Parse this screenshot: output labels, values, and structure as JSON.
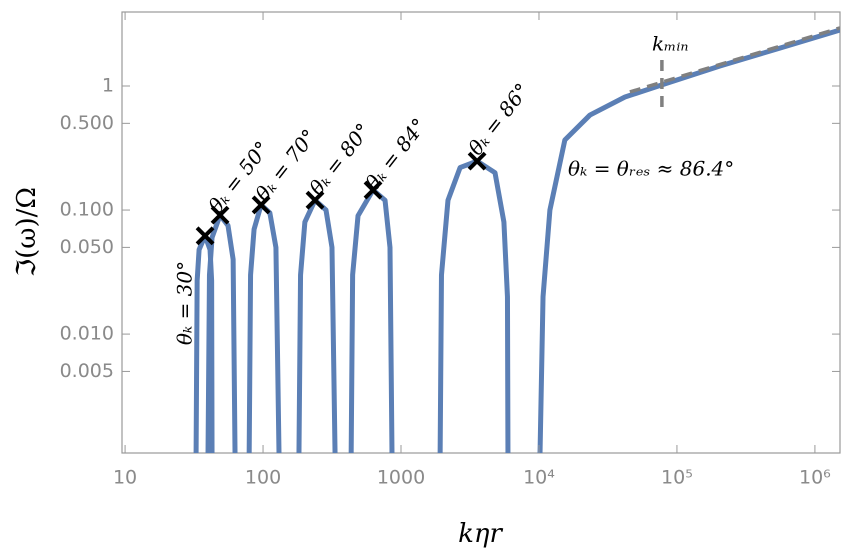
{
  "chart_data": {
    "type": "line",
    "xlabel": "kηr",
    "ylabel": "ℑ(ω)/Ω",
    "xscale": "log",
    "yscale": "log",
    "xlim": [
      9.5,
      1520000
    ],
    "ylim": [
      0.0011,
      3.95
    ],
    "xticks": [
      10,
      100,
      1000,
      {
        "value": 10000,
        "label": "10⁴"
      },
      {
        "value": 100000,
        "label": "10⁵"
      },
      {
        "value": 1000000,
        "label": "10⁶"
      }
    ],
    "yticks": [
      0.005,
      {
        "value": 0.01,
        "label": "0.010"
      },
      {
        "value": 0.05,
        "label": "0.050"
      },
      {
        "value": 0.1,
        "label": "0.100"
      },
      {
        "value": 0.5,
        "label": "0.500"
      },
      1
    ],
    "color": "#5b7fb5",
    "series": [
      {
        "x": [
          32.7,
          33.3,
          34.4,
          38.0,
          41.3,
          42.4,
          42.7
        ],
        "values": [
          0.001,
          0.027,
          0.048,
          0.062,
          0.048,
          0.027,
          0.001
        ]
      },
      {
        "x": [
          39.9,
          40.9,
          42.7,
          48.8,
          55.7,
          60.7,
          62.7
        ],
        "values": [
          0.001,
          0.03,
          0.06,
          0.091,
          0.075,
          0.04,
          0.001
        ]
      },
      {
        "x": [
          79.3,
          81.2,
          86.1,
          96.8,
          112,
          124,
          130.7
        ],
        "values": [
          0.001,
          0.03,
          0.07,
          0.11,
          0.095,
          0.05,
          0.001
        ]
      },
      {
        "x": [
          182,
          187,
          201,
          238,
          286,
          316,
          333
        ],
        "values": [
          0.001,
          0.03,
          0.08,
          0.12,
          0.1,
          0.05,
          0.001
        ]
      },
      {
        "x": [
          435,
          446,
          488,
          627,
          766,
          832,
          861
        ],
        "values": [
          0.001,
          0.03,
          0.09,
          0.145,
          0.12,
          0.05,
          0.001
        ]
      },
      {
        "x": [
          1920,
          1965,
          2190,
          2680,
          3560,
          4800,
          5570,
          5910,
          5960
        ],
        "values": [
          0.001,
          0.03,
          0.12,
          0.22,
          0.248,
          0.2,
          0.08,
          0.02,
          0.001
        ]
      },
      {
        "x": [
          10160,
          10700,
          12000,
          15400,
          23400,
          42000,
          81800,
          205000,
          557000,
          1520000
        ],
        "values": [
          0.001,
          0.02,
          0.1,
          0.367,
          0.583,
          0.815,
          1.04,
          1.45,
          2.02,
          2.83
        ]
      }
    ],
    "markers": {
      "x": [
        38.0,
        48.8,
        96.8,
        238,
        627,
        3560
      ],
      "values": [
        0.062,
        0.091,
        0.11,
        0.12,
        0.145,
        0.248
      ],
      "color": "#000000"
    },
    "reference_lines": [
      {
        "x": [
          45600,
          1520000
        ],
        "values": [
          0.895,
          2.94
        ],
        "color": "#808080"
      },
      {
        "x": [
          77800,
          77800
        ],
        "values": [
          1.62,
          0.605
        ],
        "color": "#808080"
      }
    ],
    "annotations": [
      "θₖ = 30°",
      "θₖ = 50°",
      "θₖ = 70°",
      "θₖ = 80°",
      "θₖ = 84°",
      "θₖ = 86°",
      "θₖ = θᵣₑₛ ≈ 86.4°",
      "kₘᵢₙ"
    ]
  }
}
